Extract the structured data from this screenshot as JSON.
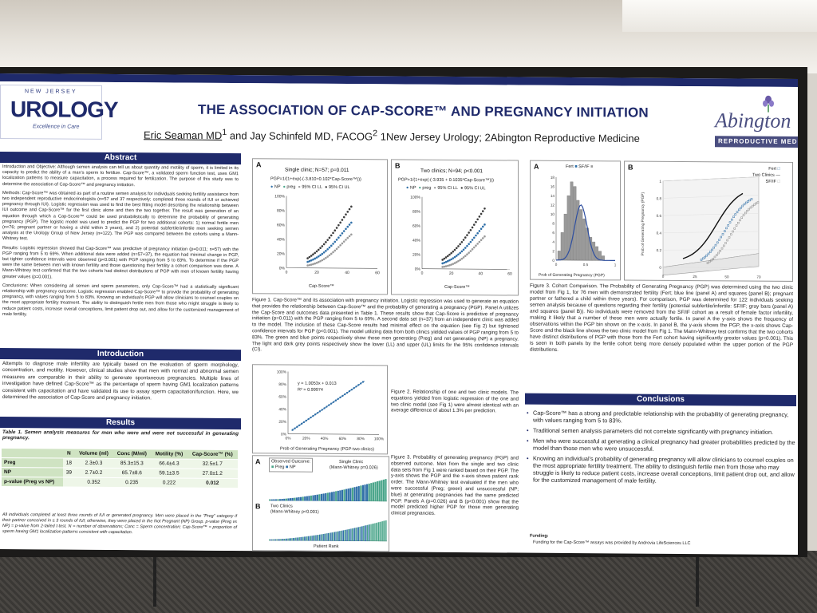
{
  "title": "THE ASSOCIATION OF CAP-SCORE™ AND PREGNANCY INITIATION",
  "authors": {
    "lead": "Eric Seaman MD",
    "lead_sup": "1",
    "rest1": " and Jay Schinfeld MD, FACOG",
    "rest_sup": "2",
    "rest2": " 1New Jersey Urology; 2Abington Reproductive Medicine"
  },
  "logos": {
    "nj_small": "NEW JERSEY",
    "nj_big": "UROLOGY",
    "nj_tag": "Excellence in Care",
    "abington_word": "Abington",
    "abington_sub": "REPRODUCTIVE MEDICINE"
  },
  "abstract": {
    "heading": "Abstract",
    "p1": "Introduction and Objective: Although semen analysis can tell us about quantity and motility of sperm, it is limited in its capacity to predict the ability of a man's sperm to fertilize. Cap-Score™, a validated sperm function test, uses GM1 localization patterns to measure capacitation, a process required for fertilization. The purpose of this study was to determine the association of Cap-Score™ and pregnancy initiation.",
    "p2": "Methods: Cap-Score™ was obtained as part of a routine semen analysis for individuals seeking fertility assistance from two independent reproductive endocrinologists (n=57 and 37 respectively; completed three rounds of IUI or achieved pregnancy through IUI). Logistic regression was used to find the best fitting model describing the relationship between IUI outcome and Cap-Score™ for the first clinic alone and then the two together. The result was generation of an equation through which a Cap-Score™ could be used probabilistically to determine the probability of generating pregnancy (PGP). The logistic model was used to predict the PGP for two additional cohorts: 1) normal fertile men (n=76; pregnant partner or having a child within 3 years), and 2) potential subfertile/infertile men seeking semen analysis at the Urology Group of New Jersey (n=122). The PGP was compared between the cohorts using a Mann-Whitney test.",
    "p3": "Results: Logistic regression showed that Cap-Score™ was predictive of pregnancy initiation (p=0.011; n=57) with the PGP ranging from 5 to 69%. When additional data were added (n=57+37), the equation had minimal change in PGP, but tighter confidence intervals were observed (p<0.001) with PGP ranging from 5 to 83%. To determine if the PGP were the same between men with known fertility and those questioning their fertility a cohort comparison was done. A Mann-Whitney test confirmed that the two cohorts had distinct distributions of PGP with men of known fertility having greater values (p=0.001).",
    "p4": "Conclusions: When considering all semen and sperm parameters, only Cap-Score™ had a statistically significant relationship with pregnancy outcome. Logistic regression enabled Cap-Score™ to provide the probability of generating pregnancy, with values ranging from 5 to 83%. Knowing an individual's PGP will allow clinicians to counsel couples on the most appropriate fertility treatment. The ability to distinguish fertile men from those who might struggle is likely to reduce patient costs, increase overall conceptions, limit patient drop out, and allow for the customized management of male fertility."
  },
  "introduction": {
    "heading": "Introduction",
    "text": "Attempts to diagnose male infertility are typically based on the evaluation of sperm morphology, concentration, and motility. However, clinical studies show that men with normal and abnormal semen measures are comparable in their ability to generate spontaneous pregnancies. Multiple lines of investigation have defined Cap-Score™ as the percentage of sperm having GM1 localization patterns consistent with capacitation and have validated its use to assay sperm capacitation/function. Here, we determined the association of Cap-Score and pregnancy initiation."
  },
  "results": {
    "heading": "Results",
    "table_caption": "Table 1. Semen analysis measures for men who were and were not successful in generating pregnancy.",
    "columns": [
      "",
      "N",
      "Volume (ml)",
      "Conc (M/ml)",
      "Motility (%)",
      "Cap-Score™ (%)"
    ],
    "rows": [
      [
        "Preg",
        "18",
        "2.3±0.3",
        "85.3±15.3",
        "66.4±4.3",
        "32.5±1.7"
      ],
      [
        "NP",
        "39",
        "2.7±0.2",
        "65.7±8.6",
        "59.1±3.5",
        "27.0±1.2"
      ],
      [
        "p-value (Preg vs NP)",
        "",
        "0.352",
        "0.235",
        "0.222",
        "0.012"
      ]
    ],
    "footnote": "All individuals completed at least three rounds of IUI or generated pregnancy. Men were placed in the \"Preg\" category if their partner conceived in ≤ 3 rounds of IUI; otherwise, they were placed in the Not Pregnant (NP) Group. p-value (Preg vs NP) = p-value from 2-tailed t-test. N = number of observations; Conc = Sperm concentration; Cap-Score™ = proportion of sperm having GM1 localization patterns consistent with capacitation."
  },
  "fig1": {
    "panelA": {
      "label": "A",
      "title": "Single clinic; N=57; p=0.011",
      "equation": "PGP=1/(1+exp(-(-3.810+0.102*Cap-Score™)))",
      "legend": [
        "NP",
        "preg",
        "95% CI LL",
        "95% CI UL"
      ],
      "xlabel": "Cap-Score™",
      "ylabel": "Prob of Generating Pregnancy (PGP)",
      "yticks": [
        "100%",
        "80%",
        "60%",
        "40%",
        "20%",
        "0%"
      ],
      "xticks": [
        "0",
        "20",
        "40",
        "60"
      ]
    },
    "panelB": {
      "label": "B",
      "title": "Two clinics; N=94; p<0.001",
      "equation": "PGP=1/(1+exp(-(-3.935 + 0.1035*Cap-Score™)))",
      "legend": [
        "NP",
        "preg",
        "95% CI LL",
        "95% CI UL"
      ],
      "xlabel": "Cap-Score™",
      "ylabel": "Prob of Generating Pregnancy (PGP)",
      "yticks": [
        "100%",
        "80%",
        "60%",
        "40%",
        "20%",
        "0%"
      ],
      "xticks": [
        "0",
        "20",
        "40",
        "60"
      ]
    },
    "caption": "Figure 1. Cap-Score™ and its association with pregnancy initiation. Logistic regression was used to generate an equation that provides the relationship between Cap-Score™ and the probability of generating a pregnancy (PGP). Panel A utilizes the Cap-Score and outcomes data presented in Table 1. These results show that Cap-Score is predictive of pregnancy initiation (p=0.011) with the PGP ranging from 5 to 69%. A second data set (n=37) from an independent clinic was added to the model. The inclusion of these Cap-Score results had minimal effect on the equation (see Fig 2) but tightened confidence intervals for PGP (p<0.001). The model utilizing data from both clinics yielded values of PGP ranging from 5 to 83%. The green and blue points respectively show those men generating (Preg) and not generating (NP) a pregnancy. The light and dark grey points respectively show the lower (LL) and upper (UL) limits for the 95% confidence intervals (CI)."
  },
  "fig2": {
    "equation": "y = 1.0053x + 0.013",
    "r2": "R² = 0.99974",
    "xlabel": "Prob of Generating Pregnancy (PGP-two clinics)",
    "ylabel": "Prob of Generating Pregnancy (PGP-one clinic)",
    "ticks": [
      "0%",
      "20%",
      "40%",
      "60%",
      "80%",
      "100%"
    ],
    "caption": "Figure 2. Relationship of one and two clinic models. The equations yielded from logistic regression of the one and two clinic model (see Fig 1) were almost identical with an average difference of about 1.3% per prediction."
  },
  "fig3": {
    "panelA": {
      "label": "A",
      "legend_title": "Observed Outcome:",
      "legend": [
        "Preg",
        "NP"
      ],
      "title": "Single Clinic",
      "test": "(Mann-Whitney p=0.026)",
      "ylabel": "PGP"
    },
    "panelB": {
      "label": "B",
      "title": "Two Clinics",
      "test": "(Mann-Whitney p<0.001)",
      "ylabel": "PGP",
      "xlabel": "Patient Rank"
    },
    "caption": "Figure 3. Probability of generating pregnancy (PGP) and observed outcome. Men from the single and two clinic data sets from Fig 1 were ranked based on their PGP. The y-axis shows the PGP and the x-axis shows patient rank order. The Mann-Whitney test evaluated if the men who were successful (Preg; green) and unsuccessful (NP; blue) at generating pregnancies had the same predicted PGP. Panels A (p=0.026) and B (p<0.001) show that the model predicted higher PGP for those men generating clinical pregnancies."
  },
  "fig4": {
    "panelA": {
      "label": "A",
      "legend": [
        "Fert",
        "SF/IF"
      ],
      "xlabel": "Prob of Generating Pregnancy (PGP)",
      "ylabel": "Frequency",
      "yticks": [
        "18",
        "16",
        "14",
        "12",
        "10",
        "8",
        "6",
        "4",
        "2",
        "0"
      ],
      "xticks": [
        "0",
        "0.5",
        "1"
      ]
    },
    "panelB": {
      "label": "B",
      "legend": [
        "Fert",
        "Two Clinics",
        "SF/IF"
      ],
      "ylabel": "Prob of Generating Pregnancy (PGP)",
      "xticks": [
        "0",
        "25",
        "50",
        "70"
      ],
      "yticks": [
        "1",
        "0.8",
        "0.6",
        "0.4",
        "0.2",
        "0"
      ]
    },
    "caption": "Figure 3. Cohort Comparison. The Probability of Generating Pregnancy (PGP) was determined using the two clinic model from Fig 1, for 76 men with demonstrated fertility (Fert; blue line (panel A) and squares (panel B); pregnant partner or fathered a child within three years). For comparison, PGP was determined for 122 individuals seeking semen analysis because of questions regarding their fertility (potential subfertile/infertile: SF/IF; gray bars (panel A) and squares (panel B)). No individuals were removed from the SF/IF cohort as a result of female factor infertility, making it likely that a number of these men were actually fertile. In panel A the y-axis shows the frequency of observations within the PGP bin shown on the x-axis. In panel B, the y-axis shows the PGP, the x-axis shows Cap-Score and the black line shows the two clinic model from Fig 1. The Mann-Whitney test confirms that the two cohorts have distinct distributions of PGP with those from the Fert cohort having significantly greater values (p=0.001). This is seen in both panels by the fertile cohort being more densely populated within the upper portion of the PGP distributions."
  },
  "conclusions": {
    "heading": "Conclusions",
    "items": [
      "Cap-Score™ has a strong and predictable relationship with the probability of generating pregnancy, with values ranging from 5 to 83%.",
      "Traditional semen analysis parameters did not correlate significantly with pregnancy initiation.",
      "Men who were successful at generating a clinical pregnancy had greater probabilities predicted by the model than those men who were unsuccessful.",
      "Knowing an individual's probability of generating pregnancy will allow clinicians to counsel couples on the most appropriate fertility treatment. The ability to distinguish fertile men from those who may struggle is likely to reduce patient costs, increase overall conceptions, limit patient drop out, and allow for the customized management of male fertility."
    ]
  },
  "funding": {
    "heading": "Funding:",
    "text": "Funding for the Cap-Score™ assays was provided by Androvia LifeSciences LLC"
  },
  "colors": {
    "navy": "#1f2a6b",
    "preg_green": "#4aa58a",
    "np_blue": "#2f6fa8",
    "ci_grey": "#9a9a9a",
    "ci_dark": "#3c3c3c"
  }
}
